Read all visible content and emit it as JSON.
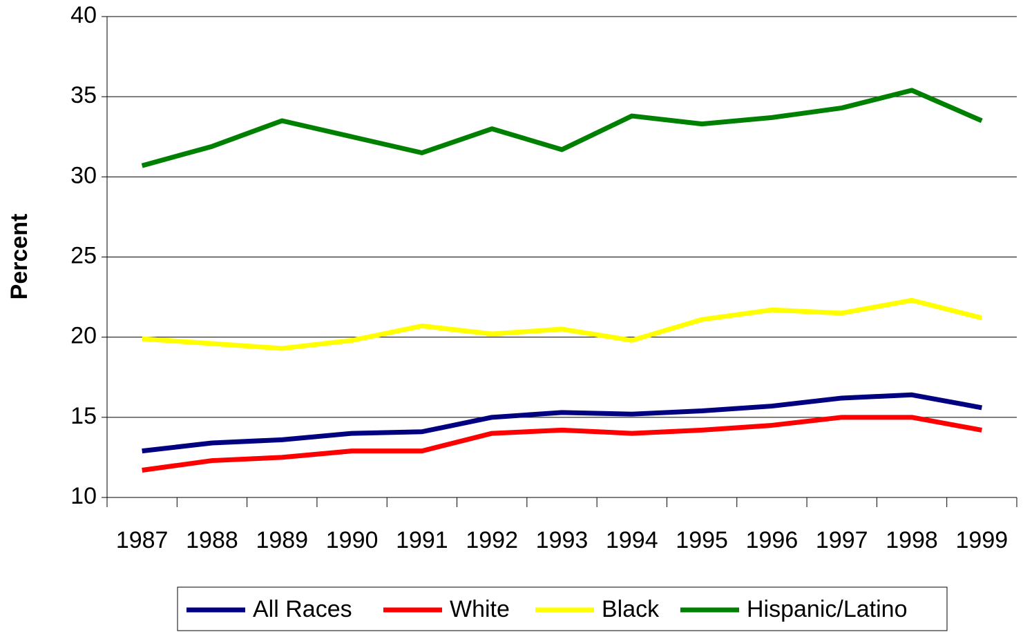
{
  "chart_data": {
    "type": "line",
    "ylabel": "Percent",
    "categories": [
      "1987",
      "1988",
      "1989",
      "1990",
      "1991",
      "1992",
      "1993",
      "1994",
      "1995",
      "1996",
      "1997",
      "1998",
      "1999"
    ],
    "series": [
      {
        "name": "All Races",
        "color": "#000080",
        "values": [
          12.9,
          13.4,
          13.6,
          14.0,
          14.1,
          15.0,
          15.3,
          15.2,
          15.4,
          15.7,
          16.2,
          16.4,
          15.6
        ]
      },
      {
        "name": "White",
        "color": "#ff0000",
        "values": [
          11.7,
          12.3,
          12.5,
          12.9,
          12.9,
          14.0,
          14.2,
          14.0,
          14.2,
          14.5,
          15.0,
          15.0,
          14.2
        ]
      },
      {
        "name": "Black",
        "color": "#ffff00",
        "values": [
          19.9,
          19.6,
          19.3,
          19.8,
          20.7,
          20.2,
          20.5,
          19.8,
          21.1,
          21.7,
          21.5,
          22.3,
          21.2
        ]
      },
      {
        "name": "Hispanic/Latino",
        "color": "#008000",
        "values": [
          30.7,
          31.9,
          33.5,
          32.5,
          31.5,
          33.0,
          31.7,
          33.8,
          33.3,
          33.7,
          34.3,
          35.4,
          33.5
        ]
      }
    ],
    "ylim": [
      10,
      40
    ],
    "yticks": [
      10,
      15,
      20,
      25,
      30,
      35,
      40
    ],
    "grid": true,
    "legend": "bottom"
  }
}
